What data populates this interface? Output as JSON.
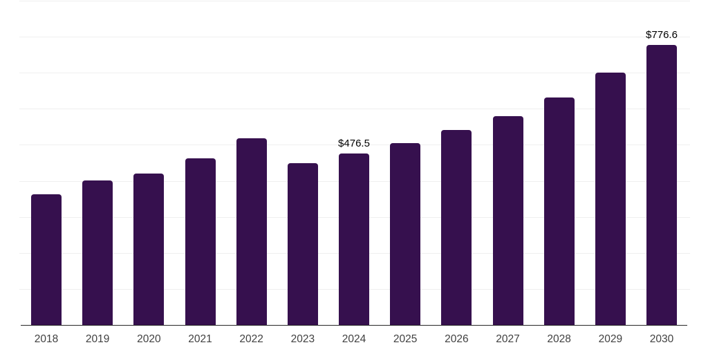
{
  "chart_data": {
    "type": "bar",
    "categories": [
      "2018",
      "2019",
      "2020",
      "2021",
      "2022",
      "2023",
      "2024",
      "2025",
      "2026",
      "2027",
      "2028",
      "2029",
      "2030"
    ],
    "values": [
      362,
      401,
      420,
      462,
      518,
      450,
      476.5,
      505,
      541,
      579,
      631,
      700,
      776.6
    ],
    "data_labels": [
      "",
      "",
      "",
      "",
      "",
      "",
      "$476.5",
      "",
      "",
      "",
      "",
      "",
      "$776.6"
    ],
    "title": "",
    "xlabel": "",
    "ylabel": "",
    "ylim": [
      0,
      900
    ],
    "grid_step": 100,
    "grid": "horizontal-only",
    "y_tick_labels_visible": false,
    "legend": "none",
    "colors": {
      "bar": "#36104E",
      "grid_line": "#efefef",
      "axis_line": "#262626",
      "data_label": "#000000",
      "tick_label": "#404040",
      "background": "#ffffff"
    }
  }
}
